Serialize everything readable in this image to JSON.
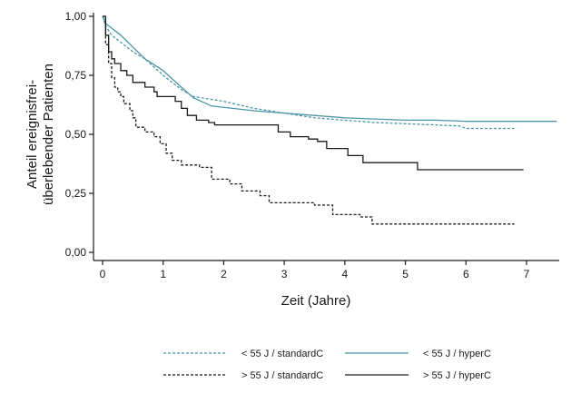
{
  "chart_data": {
    "type": "line",
    "xlabel": "Zeit (Jahre)",
    "ylabel_lines": [
      "Anteil ereignisfrei-",
      "überlebender Patienten"
    ],
    "xlim": [
      0,
      7.6
    ],
    "ylim": [
      0,
      1.0
    ],
    "x_ticks": [
      0,
      1,
      2,
      3,
      4,
      5,
      6,
      7
    ],
    "x_tick_labels": [
      "0",
      "1",
      "2",
      "3",
      "4",
      "5",
      "6",
      "7"
    ],
    "y_ticks": [
      0,
      0.25,
      0.5,
      0.75,
      1.0
    ],
    "y_tick_labels": [
      "0,00",
      "0,25",
      "0,50",
      "0,75",
      "1,00"
    ],
    "grid": false,
    "legend_position": "bottom",
    "series": [
      {
        "name": "< 55 J / standardC",
        "color": "#4a95a8",
        "style": "dashed",
        "step": false,
        "points": [
          [
            0,
            1.0
          ],
          [
            0.05,
            0.96
          ],
          [
            0.15,
            0.92
          ],
          [
            0.3,
            0.89
          ],
          [
            0.5,
            0.85
          ],
          [
            0.7,
            0.82
          ],
          [
            1.0,
            0.75
          ],
          [
            1.3,
            0.69
          ],
          [
            1.5,
            0.66
          ],
          [
            2.0,
            0.64
          ],
          [
            2.5,
            0.61
          ],
          [
            3.0,
            0.59
          ],
          [
            3.5,
            0.57
          ],
          [
            4.0,
            0.56
          ],
          [
            4.5,
            0.55
          ],
          [
            5.0,
            0.545
          ],
          [
            5.5,
            0.54
          ],
          [
            5.9,
            0.535
          ],
          [
            6.0,
            0.525
          ],
          [
            6.8,
            0.525
          ]
        ]
      },
      {
        "name": "< 55 J / hyperC",
        "color": "#4a95a8",
        "style": "solid",
        "step": false,
        "points": [
          [
            0,
            1.0
          ],
          [
            0.05,
            0.97
          ],
          [
            0.15,
            0.95
          ],
          [
            0.3,
            0.92
          ],
          [
            0.5,
            0.87
          ],
          [
            0.7,
            0.82
          ],
          [
            1.0,
            0.77
          ],
          [
            1.3,
            0.7
          ],
          [
            1.5,
            0.655
          ],
          [
            1.8,
            0.62
          ],
          [
            2.5,
            0.6
          ],
          [
            3.0,
            0.59
          ],
          [
            3.5,
            0.58
          ],
          [
            4.0,
            0.57
          ],
          [
            4.5,
            0.565
          ],
          [
            5.0,
            0.56
          ],
          [
            5.5,
            0.56
          ],
          [
            6.0,
            0.555
          ],
          [
            7.5,
            0.555
          ]
        ]
      },
      {
        "name": "> 55 J / standardC",
        "color": "#1a1a1a",
        "style": "dashed",
        "step": true,
        "points": [
          [
            0,
            1.0
          ],
          [
            0.05,
            0.88
          ],
          [
            0.1,
            0.8
          ],
          [
            0.15,
            0.74
          ],
          [
            0.2,
            0.7
          ],
          [
            0.25,
            0.68
          ],
          [
            0.3,
            0.66
          ],
          [
            0.35,
            0.63
          ],
          [
            0.45,
            0.6
          ],
          [
            0.5,
            0.57
          ],
          [
            0.55,
            0.53
          ],
          [
            0.7,
            0.51
          ],
          [
            0.85,
            0.49
          ],
          [
            0.95,
            0.46
          ],
          [
            1.05,
            0.42
          ],
          [
            1.15,
            0.39
          ],
          [
            1.3,
            0.37
          ],
          [
            1.6,
            0.36
          ],
          [
            1.8,
            0.31
          ],
          [
            2.1,
            0.29
          ],
          [
            2.3,
            0.26
          ],
          [
            2.6,
            0.24
          ],
          [
            2.75,
            0.21
          ],
          [
            3.5,
            0.2
          ],
          [
            3.8,
            0.16
          ],
          [
            4.25,
            0.15
          ],
          [
            4.45,
            0.12
          ],
          [
            6.8,
            0.12
          ]
        ]
      },
      {
        "name": "> 55 J / hyperC",
        "color": "#1a1a1a",
        "style": "solid",
        "step": true,
        "points": [
          [
            0,
            1.0
          ],
          [
            0.05,
            0.92
          ],
          [
            0.1,
            0.85
          ],
          [
            0.15,
            0.82
          ],
          [
            0.2,
            0.8
          ],
          [
            0.3,
            0.77
          ],
          [
            0.4,
            0.75
          ],
          [
            0.5,
            0.72
          ],
          [
            0.7,
            0.7
          ],
          [
            0.85,
            0.68
          ],
          [
            0.9,
            0.66
          ],
          [
            1.2,
            0.64
          ],
          [
            1.3,
            0.61
          ],
          [
            1.4,
            0.58
          ],
          [
            1.55,
            0.56
          ],
          [
            1.75,
            0.55
          ],
          [
            1.85,
            0.54
          ],
          [
            2.9,
            0.51
          ],
          [
            3.1,
            0.49
          ],
          [
            3.4,
            0.48
          ],
          [
            3.55,
            0.47
          ],
          [
            3.7,
            0.44
          ],
          [
            4.05,
            0.41
          ],
          [
            4.3,
            0.38
          ],
          [
            5.2,
            0.35
          ],
          [
            6.95,
            0.35
          ]
        ]
      }
    ]
  }
}
